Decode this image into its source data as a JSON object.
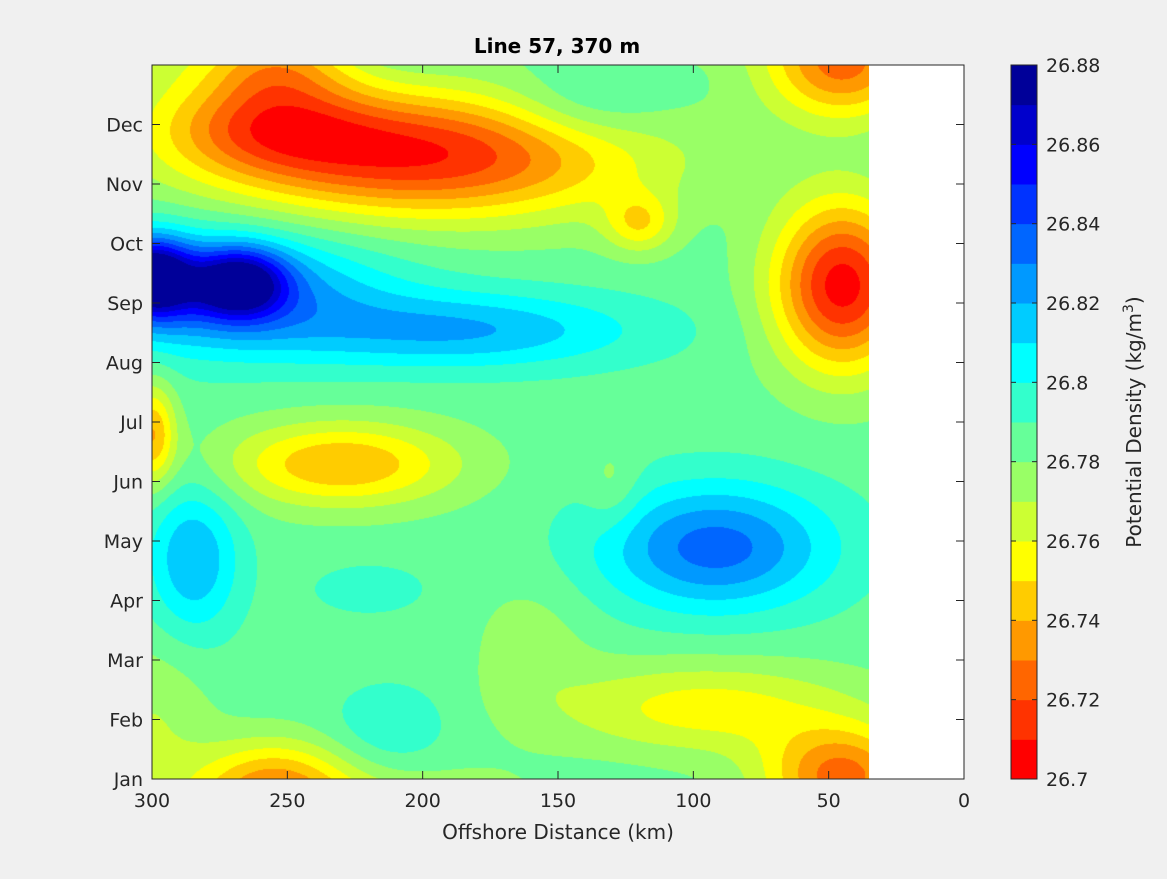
{
  "chart_data": {
    "type": "heatmap",
    "title": "Line 57, 370 m",
    "xlabel": "Offshore Distance (km)",
    "ylabel": "",
    "x_ticks": [
      300,
      250,
      200,
      150,
      100,
      50,
      0
    ],
    "xlim": [
      300,
      0
    ],
    "y_ticks": [
      "Jan",
      "Feb",
      "Mar",
      "Apr",
      "May",
      "Jun",
      "Jul",
      "Aug",
      "Sep",
      "Oct",
      "Nov",
      "Dec"
    ],
    "ylim": [
      0,
      12
    ],
    "data_extent_km": [
      300,
      35
    ],
    "colorbar": {
      "label": "Potential Density (kg/m",
      "label_sup": "3",
      "label_end": ")",
      "min": 26.7,
      "max": 26.88,
      "step": 0.01,
      "tick_labels": [
        "26.7",
        "26.72",
        "26.74",
        "26.76",
        "26.78",
        "26.8",
        "26.82",
        "26.84",
        "26.86",
        "26.88"
      ],
      "colors": [
        "#ff0000",
        "#ff3300",
        "#ff6600",
        "#ff9900",
        "#ffcc00",
        "#ffff00",
        "#ccff33",
        "#99ff66",
        "#66ff99",
        "#33ffcc",
        "#00ffff",
        "#00ccff",
        "#0099ff",
        "#0066ff",
        "#0033ff",
        "#0000ff",
        "#0000cc",
        "#000099"
      ]
    },
    "field": {
      "background": 26.785,
      "features": [
        {
          "x": 300,
          "m": 8.45,
          "sx": 10,
          "sy": 0.45,
          "a": 0.085
        },
        {
          "x": 268,
          "m": 8.35,
          "sx": 12,
          "sy": 0.4,
          "a": 0.07
        },
        {
          "x": 275,
          "m": 8.2,
          "sx": 40,
          "sy": 0.7,
          "a": 0.05
        },
        {
          "x": 185,
          "m": 7.55,
          "sx": 45,
          "sy": 0.45,
          "a": 0.035
        },
        {
          "x": 200,
          "m": 10.5,
          "sx": 55,
          "sy": 0.75,
          "a": -0.075
        },
        {
          "x": 258,
          "m": 11.0,
          "sx": 28,
          "sy": 0.55,
          "a": -0.04
        },
        {
          "x": 120,
          "m": 9.35,
          "sx": 9,
          "sy": 0.35,
          "a": -0.03
        },
        {
          "x": 45,
          "m": 8.3,
          "sx": 18,
          "sy": 1.0,
          "a": -0.08
        },
        {
          "x": 45,
          "m": 11.8,
          "sx": 20,
          "sy": 0.6,
          "a": -0.04
        },
        {
          "x": 140,
          "m": 11.3,
          "sx": 22,
          "sy": 0.5,
          "a": 0.018
        },
        {
          "x": 230,
          "m": 5.3,
          "sx": 30,
          "sy": 0.5,
          "a": -0.045
        },
        {
          "x": 300,
          "m": 5.8,
          "sx": 6,
          "sy": 0.6,
          "a": -0.045
        },
        {
          "x": 92,
          "m": 3.9,
          "sx": 30,
          "sy": 0.75,
          "a": 0.05
        },
        {
          "x": 285,
          "m": 3.7,
          "sx": 12,
          "sy": 0.9,
          "a": 0.035
        },
        {
          "x": 130,
          "m": 4.9,
          "sx": 7,
          "sy": 0.5,
          "a": -0.012
        },
        {
          "x": 255,
          "m": 0.0,
          "sx": 20,
          "sy": 0.5,
          "a": -0.04
        },
        {
          "x": 95,
          "m": 1.2,
          "sx": 40,
          "sy": 0.55,
          "a": -0.03
        },
        {
          "x": 45,
          "m": 0.3,
          "sx": 20,
          "sy": 0.5,
          "a": -0.025
        },
        {
          "x": 300,
          "m": 1.0,
          "sx": 15,
          "sy": 1.0,
          "a": -0.015
        },
        {
          "x": 212,
          "m": 0.9,
          "sx": 15,
          "sy": 0.5,
          "a": 0.015
        },
        {
          "x": 220,
          "m": 3.2,
          "sx": 15,
          "sy": 0.3,
          "a": 0.012
        },
        {
          "x": 160,
          "m": 2.3,
          "sx": 15,
          "sy": 0.8,
          "a": -0.01
        }
      ]
    }
  }
}
